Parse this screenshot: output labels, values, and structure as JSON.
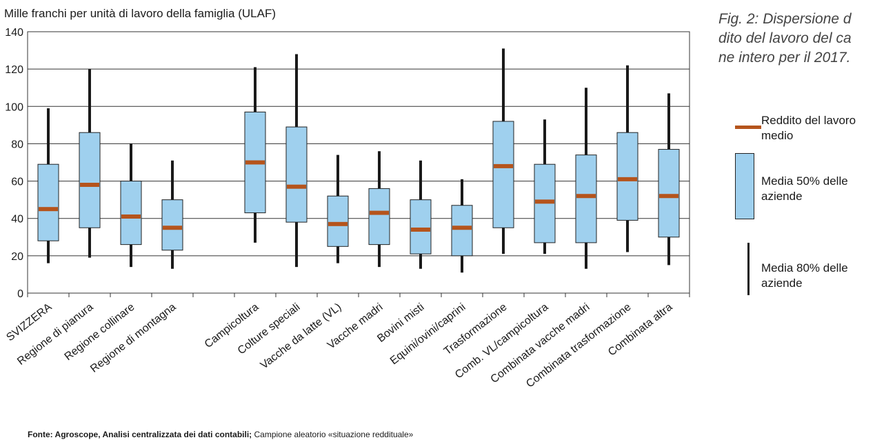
{
  "ylabel": "Mille franchi per unità di lavoro della famiglia (ULAF)",
  "caption": [
    "Fig. 2: Dispersione d",
    "dito del lavoro del ca",
    "ne intero per il 2017."
  ],
  "source": {
    "bold": "Fonte: Agroscope, Analisi centralizzata dei dati contabili;",
    "normal": " Campione aleatorio «situazione reddituale»"
  },
  "legend": {
    "mean": "Reddito del lavoro medio",
    "box": "Media 50% delle aziende",
    "whisker": "Media 80% delle aziende"
  },
  "colors": {
    "box": "#9fd0ee",
    "mean": "#b5541c",
    "whisker": "#1a1a1a"
  },
  "chart_data": {
    "type": "boxplot",
    "ylim": [
      0,
      140
    ],
    "yticks": [
      0,
      20,
      40,
      60,
      80,
      100,
      120,
      140
    ],
    "grid": true,
    "legend_position": "right",
    "categories": [
      {
        "label": "SVIZZERA",
        "low": 16,
        "q1": 28,
        "mean": 45,
        "q3": 69,
        "high": 99
      },
      {
        "label": "Regione di pianura",
        "low": 19,
        "q1": 35,
        "mean": 58,
        "q3": 86,
        "high": 120
      },
      {
        "label": "Regione collinare",
        "low": 14,
        "q1": 26,
        "mean": 41,
        "q3": 60,
        "high": 80
      },
      {
        "label": "Regione di montagna",
        "low": 13,
        "q1": 23,
        "mean": 35,
        "q3": 50,
        "high": 71
      },
      {
        "label": "",
        "empty": true
      },
      {
        "label": "Campicoltura",
        "low": 27,
        "q1": 43,
        "mean": 70,
        "q3": 97,
        "high": 121
      },
      {
        "label": "Colture speciali",
        "low": 14,
        "q1": 38,
        "mean": 57,
        "q3": 89,
        "high": 128
      },
      {
        "label": "Vacche da latte (VL)",
        "low": 16,
        "q1": 25,
        "mean": 37,
        "q3": 52,
        "high": 74
      },
      {
        "label": "Vacche madri",
        "low": 14,
        "q1": 26,
        "mean": 43,
        "q3": 56,
        "high": 76
      },
      {
        "label": "Bovini misti",
        "low": 13,
        "q1": 21,
        "mean": 34,
        "q3": 50,
        "high": 71
      },
      {
        "label": "Equini/ovini/caprini",
        "low": 11,
        "q1": 20,
        "mean": 35,
        "q3": 47,
        "high": 61
      },
      {
        "label": "Trasformazione",
        "low": 21,
        "q1": 35,
        "mean": 68,
        "q3": 92,
        "high": 131
      },
      {
        "label": "Comb. VL/campicoltura",
        "low": 21,
        "q1": 27,
        "mean": 49,
        "q3": 69,
        "high": 93
      },
      {
        "label": "Combinata vacche madri",
        "low": 13,
        "q1": 27,
        "mean": 52,
        "q3": 74,
        "high": 110
      },
      {
        "label": "Combinata trasformazione",
        "low": 22,
        "q1": 39,
        "mean": 61,
        "q3": 86,
        "high": 122
      },
      {
        "label": "Combinata altra",
        "low": 15,
        "q1": 30,
        "mean": 52,
        "q3": 77,
        "high": 107
      }
    ]
  }
}
